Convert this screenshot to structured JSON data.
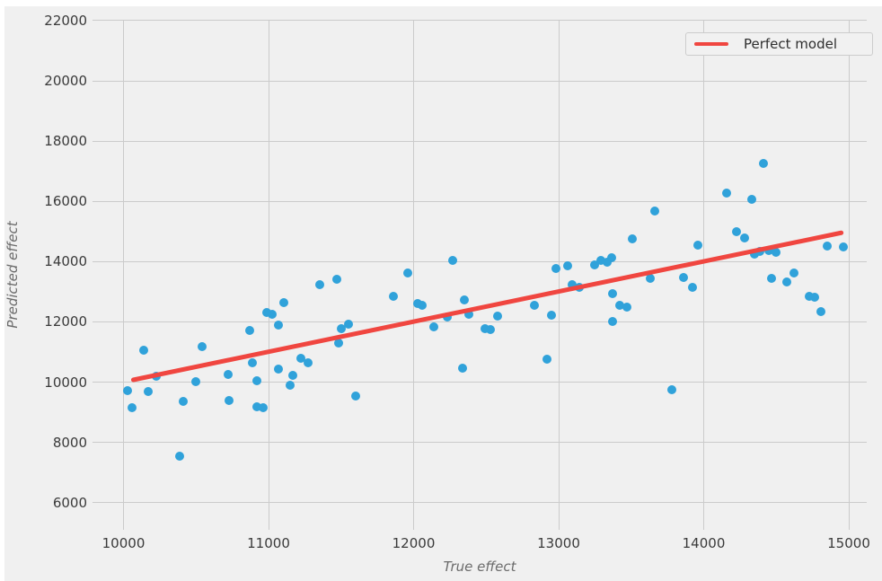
{
  "figure": {
    "page_background": "#ffffff",
    "figure_background": "#f0f0f0"
  },
  "chart_data": {
    "type": "scatter",
    "title": "",
    "xlabel": "True effect",
    "ylabel": "Predicted effect",
    "x_ticks": [
      10000,
      11000,
      12000,
      13000,
      14000,
      15000
    ],
    "y_ticks": [
      6000,
      8000,
      10000,
      12000,
      14000,
      16000,
      18000,
      20000,
      22000
    ],
    "xlim": [
      9786,
      15170
    ],
    "ylim": [
      5100,
      22000
    ],
    "grid": true,
    "legend_position": "upper right",
    "legend_label": "Perfect model",
    "scatter_color": "#30a2da",
    "line_color": "#f04640",
    "grid_color": "#cbcbcb",
    "tick_color": "#3a3a3a",
    "label_color": "#6b6b6b",
    "perfect_model_line": {
      "x1": 10050,
      "y1": 10050,
      "x2": 14960,
      "y2": 14960
    },
    "points": [
      [
        10030,
        9720
      ],
      [
        10060,
        9140
      ],
      [
        10140,
        11060
      ],
      [
        10170,
        9680
      ],
      [
        10225,
        10180
      ],
      [
        10390,
        7550
      ],
      [
        10410,
        9370
      ],
      [
        10500,
        10010
      ],
      [
        10540,
        11180
      ],
      [
        10720,
        10260
      ],
      [
        10730,
        9380
      ],
      [
        10870,
        11720
      ],
      [
        10890,
        10650
      ],
      [
        10920,
        10040
      ],
      [
        10920,
        9180
      ],
      [
        10960,
        9140
      ],
      [
        10985,
        12320
      ],
      [
        11025,
        12240
      ],
      [
        11070,
        11900
      ],
      [
        11070,
        10430
      ],
      [
        11105,
        12650
      ],
      [
        11150,
        9910
      ],
      [
        11170,
        10210
      ],
      [
        11220,
        10800
      ],
      [
        11270,
        10630
      ],
      [
        11355,
        13240
      ],
      [
        11470,
        13400
      ],
      [
        11480,
        11290
      ],
      [
        11500,
        11760
      ],
      [
        11550,
        11930
      ],
      [
        11600,
        9530
      ],
      [
        11860,
        12850
      ],
      [
        11960,
        13620
      ],
      [
        12030,
        12610
      ],
      [
        12060,
        12540
      ],
      [
        12140,
        11820
      ],
      [
        12230,
        12160
      ],
      [
        12270,
        14030
      ],
      [
        12340,
        10450
      ],
      [
        12350,
        12730
      ],
      [
        12380,
        12260
      ],
      [
        12490,
        11760
      ],
      [
        12530,
        11740
      ],
      [
        12580,
        12180
      ],
      [
        12830,
        12540
      ],
      [
        12920,
        10770
      ],
      [
        12950,
        12230
      ],
      [
        12980,
        13760
      ],
      [
        13065,
        13860
      ],
      [
        13090,
        13230
      ],
      [
        13140,
        13130
      ],
      [
        13245,
        13880
      ],
      [
        13290,
        14040
      ],
      [
        13335,
        13990
      ],
      [
        13365,
        14120
      ],
      [
        13370,
        12950
      ],
      [
        13370,
        12000
      ],
      [
        13420,
        12550
      ],
      [
        13470,
        12500
      ],
      [
        13510,
        14740
      ],
      [
        13630,
        13450
      ],
      [
        13660,
        15680
      ],
      [
        13780,
        9760
      ],
      [
        13860,
        13470
      ],
      [
        13920,
        13150
      ],
      [
        13960,
        14560
      ],
      [
        14160,
        16280
      ],
      [
        14225,
        14990
      ],
      [
        14280,
        14790
      ],
      [
        14330,
        16080
      ],
      [
        14350,
        14240
      ],
      [
        14390,
        14330
      ],
      [
        14410,
        17270
      ],
      [
        14450,
        14360
      ],
      [
        14500,
        14310
      ],
      [
        14470,
        13430
      ],
      [
        14570,
        13330
      ],
      [
        14620,
        13630
      ],
      [
        14725,
        12845
      ],
      [
        14765,
        12805
      ],
      [
        14810,
        12340
      ],
      [
        14850,
        14510
      ],
      [
        14960,
        14500
      ]
    ]
  }
}
